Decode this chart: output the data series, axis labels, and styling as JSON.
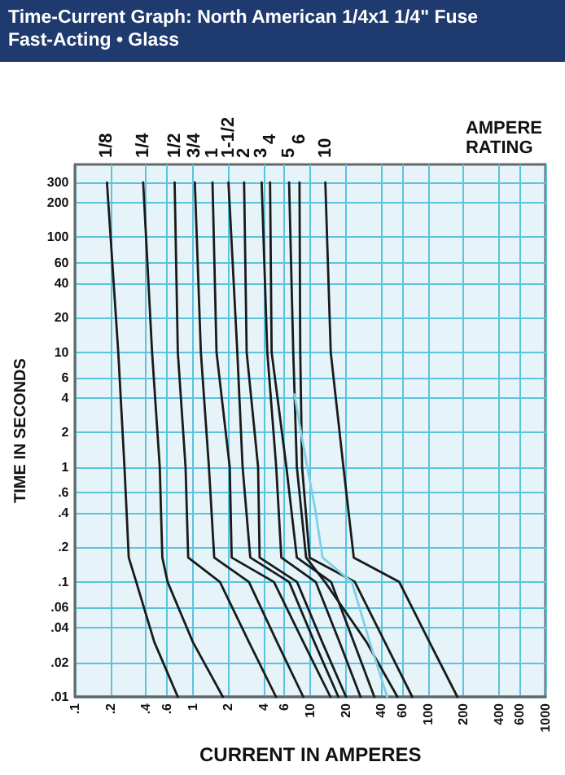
{
  "chart_data": {
    "type": "line",
    "title": "Time-Current Graph: North American 1/4x1 1/4\" Fuse",
    "subtitle": "Fast-Acting • Glass",
    "xlabel": "CURRENT IN AMPERES",
    "ylabel": "TIME IN SECONDS",
    "legend_title": "AMPERE RATING",
    "log": "xy",
    "grid": true,
    "marker": "none",
    "line_style": "solid",
    "xlim": [
      0.1,
      1000
    ],
    "ylim": [
      0.01,
      430
    ],
    "xticks": [
      {
        "value": 0.1,
        "label": ".1"
      },
      {
        "value": 0.2,
        "label": ".2"
      },
      {
        "value": 0.4,
        "label": ".4"
      },
      {
        "value": 0.6,
        "label": ".6"
      },
      1,
      2,
      4,
      6,
      10,
      20,
      40,
      60,
      100,
      200,
      400,
      600,
      1000
    ],
    "yticks": [
      {
        "value": 0.01,
        "label": ".01"
      },
      {
        "value": 0.02,
        "label": ".02"
      },
      {
        "value": 0.04,
        "label": ".04"
      },
      {
        "value": 0.06,
        "label": ".06"
      },
      {
        "value": 0.1,
        "label": ".1"
      },
      {
        "value": 0.2,
        "label": ".2"
      },
      {
        "value": 0.4,
        "label": ".4"
      },
      {
        "value": 0.6,
        "label": ".6"
      },
      1,
      2,
      4,
      6,
      10,
      20,
      40,
      60,
      100,
      200,
      300
    ],
    "series": [
      {
        "name": "1/8",
        "color": "#1a1a1a",
        "x": [
          0.186,
          0.232,
          0.262,
          0.285,
          0.33,
          0.47,
          0.745
        ],
        "values": [
          300,
          10,
          1,
          0.163,
          0.1,
          0.03,
          0.01
        ]
      },
      {
        "name": "1/4",
        "color": "#1a1a1a",
        "x": [
          0.378,
          0.45,
          0.523,
          0.55,
          0.61,
          1.0,
          1.8
        ],
        "values": [
          300,
          10,
          1,
          0.163,
          0.1,
          0.03,
          0.01
        ]
      },
      {
        "name": "1/2",
        "color": "#1a1a1a",
        "x": [
          0.7,
          0.745,
          0.867,
          0.913,
          1.7,
          3,
          5.1
        ],
        "values": [
          300,
          10,
          1,
          0.163,
          0.1,
          0.03,
          0.01
        ]
      },
      {
        "name": "3/4",
        "color": "#1a1a1a",
        "x": [
          1.04,
          1.17,
          1.37,
          1.52,
          3,
          5.2,
          8.7
        ],
        "values": [
          300,
          10,
          1,
          0.163,
          0.1,
          0.03,
          0.01
        ]
      },
      {
        "name": "1",
        "color": "#1a1a1a",
        "x": [
          1.47,
          1.59,
          2.06,
          2.14,
          4.9,
          8.7,
          14.8
        ],
        "values": [
          300,
          10,
          1,
          0.163,
          0.1,
          0.03,
          0.01
        ]
      },
      {
        "name": "1-1/2",
        "color": "#1a1a1a",
        "x": [
          2.01,
          2.39,
          2.65,
          3.08,
          6.6,
          10.8,
          17.3
        ],
        "values": [
          300,
          10,
          1,
          0.163,
          0.1,
          0.03,
          0.01
        ]
      },
      {
        "name": "2",
        "color": "#1a1a1a",
        "x": [
          2.73,
          2.87,
          3.59,
          3.7,
          7.7,
          12.6,
          20.1
        ],
        "values": [
          300,
          10,
          1,
          0.163,
          0.1,
          0.03,
          0.01
        ]
      },
      {
        "name": "3",
        "color": "#1a1a1a",
        "x": [
          3.85,
          4.3,
          5.12,
          5.66,
          11.1,
          17.7,
          26.7
        ],
        "values": [
          300,
          10,
          1,
          0.163,
          0.1,
          0.03,
          0.01
        ]
      },
      {
        "name": "4",
        "color": "#1a1a1a",
        "x": [
          4.54,
          4.68,
          6.25,
          7.67,
          15,
          23.4,
          35
        ],
        "values": [
          300,
          10,
          1,
          0.163,
          0.1,
          0.03,
          0.01
        ]
      },
      {
        "name": "5",
        "color": "#1a1a1a",
        "x": [
          6.59,
          7.15,
          7.67,
          9.2,
          13.3,
          30,
          55
        ],
        "values": [
          300,
          10,
          1,
          0.163,
          0.1,
          0.03,
          0.01
        ]
      },
      {
        "name": "6",
        "color": "#1a1a1a",
        "x": [
          8.08,
          8.2,
          8.5,
          9.85,
          23.9,
          43,
          73.6
        ],
        "values": [
          300,
          10,
          1,
          0.163,
          0.1,
          0.03,
          0.01
        ]
      },
      {
        "name": "10",
        "color": "#1a1a1a",
        "x": [
          13.4,
          14.9,
          19.1,
          23.4,
          57,
          103,
          178
        ],
        "values": [
          300,
          10,
          1,
          0.163,
          0.1,
          0.03,
          0.01
        ]
      },
      {
        "color": "#7fd0e6",
        "x": [
          7.3,
          9.4,
          10.9,
          12.7,
          22.5,
          32,
          45
        ],
        "values": [
          4.3,
          1,
          0.45,
          0.163,
          0.1,
          0.03,
          0.01
        ]
      }
    ]
  }
}
